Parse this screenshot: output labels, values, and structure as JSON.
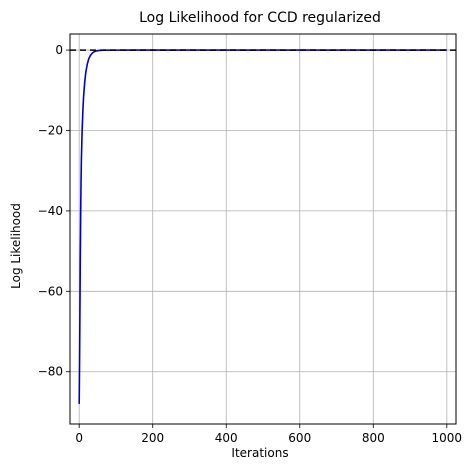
{
  "chart_data": {
    "type": "line",
    "title": "Log Likelihood for CCD regularized",
    "xlabel": "Iterations",
    "ylabel": "Log Likelihood",
    "xlim": [
      -25,
      1025
    ],
    "ylim": [
      -93,
      4
    ],
    "xticks": [
      0,
      200,
      400,
      600,
      800,
      1000
    ],
    "xtick_labels": [
      "0",
      "200",
      "400",
      "600",
      "800",
      "1000"
    ],
    "yticks": [
      0,
      -20,
      -40,
      -60,
      -80
    ],
    "ytick_labels": [
      "0",
      "−20",
      "−40",
      "−60",
      "−80"
    ],
    "grid": true,
    "series": [
      {
        "color": "#0000cc",
        "x": [
          0,
          1,
          2,
          3,
          4,
          5,
          6,
          8,
          10,
          12,
          15,
          18,
          22,
          26,
          30,
          35,
          40,
          45,
          50,
          60,
          70,
          100,
          200,
          300,
          400,
          500,
          600,
          700,
          800,
          900,
          1000
        ],
        "y": [
          -88,
          -78,
          -65,
          -52,
          -41,
          -33,
          -27,
          -20,
          -15,
          -11.5,
          -8,
          -5.5,
          -3.5,
          -2.2,
          -1.4,
          -0.8,
          -0.45,
          -0.25,
          -0.15,
          -0.06,
          -0.03,
          -0.01,
          0,
          0,
          0,
          0,
          0,
          0,
          0,
          0,
          0
        ]
      }
    ],
    "reference_line": {
      "y": 0,
      "color": "#000000",
      "style": "dashed"
    }
  }
}
